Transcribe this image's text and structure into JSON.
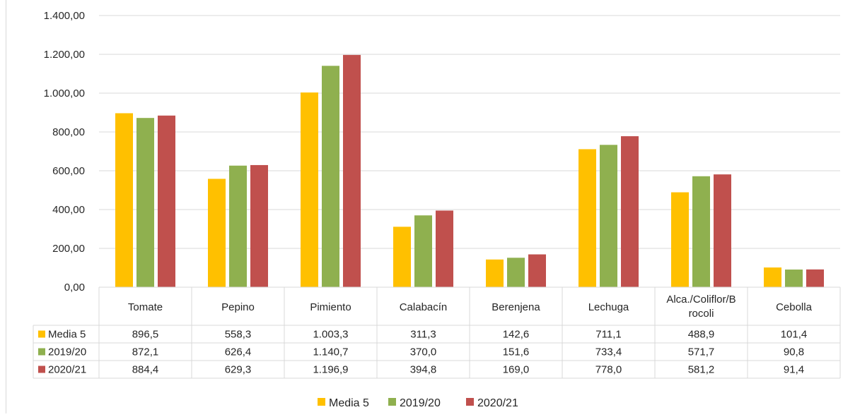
{
  "chart_data": {
    "type": "bar",
    "categories": [
      "Tomate",
      "Pepino",
      "Pimiento",
      "Calabacín",
      "Berenjena",
      "Lechuga",
      "Alca./Coliflor/Brocoli",
      "Cebolla"
    ],
    "category_display": [
      [
        "Tomate"
      ],
      [
        "Pepino"
      ],
      [
        "Pimiento"
      ],
      [
        "Calabacín"
      ],
      [
        "Berenjena"
      ],
      [
        "Lechuga"
      ],
      [
        "Alca./Coliflor/B",
        "rocoli"
      ],
      [
        "Cebolla"
      ]
    ],
    "series": [
      {
        "name": "Media 5",
        "color": "#FFC000",
        "values": [
          896.5,
          558.3,
          1003.3,
          311.3,
          142.6,
          711.1,
          488.9,
          101.4
        ],
        "labels": [
          "896,5",
          "558,3",
          "1.003,3",
          "311,3",
          "142,6",
          "711,1",
          "488,9",
          "101,4"
        ]
      },
      {
        "name": "2019/20",
        "color": "#8FB04F",
        "values": [
          872.1,
          626.4,
          1140.7,
          370.0,
          151.6,
          733.4,
          571.7,
          90.8
        ],
        "labels": [
          "872,1",
          "626,4",
          "1.140,7",
          "370,0",
          "151,6",
          "733,4",
          "571,7",
          "90,8"
        ]
      },
      {
        "name": "2020/21",
        "color": "#C0504D",
        "values": [
          884.4,
          629.3,
          1196.9,
          394.8,
          169.0,
          778.0,
          581.2,
          91.4
        ],
        "labels": [
          "884,4",
          "629,3",
          "1.196,9",
          "394,8",
          "169,0",
          "778,0",
          "581,2",
          "91,4"
        ]
      }
    ],
    "y_ticks": [
      0,
      200,
      400,
      600,
      800,
      1000,
      1200,
      1400
    ],
    "y_tick_labels": [
      "0,00",
      "200,00",
      "400,00",
      "600,00",
      "800,00",
      "1.000,00",
      "1.200,00",
      "1.400,00"
    ],
    "ylim": [
      0,
      1400
    ],
    "grid": true,
    "legend_position": "bottom",
    "data_table": true
  }
}
